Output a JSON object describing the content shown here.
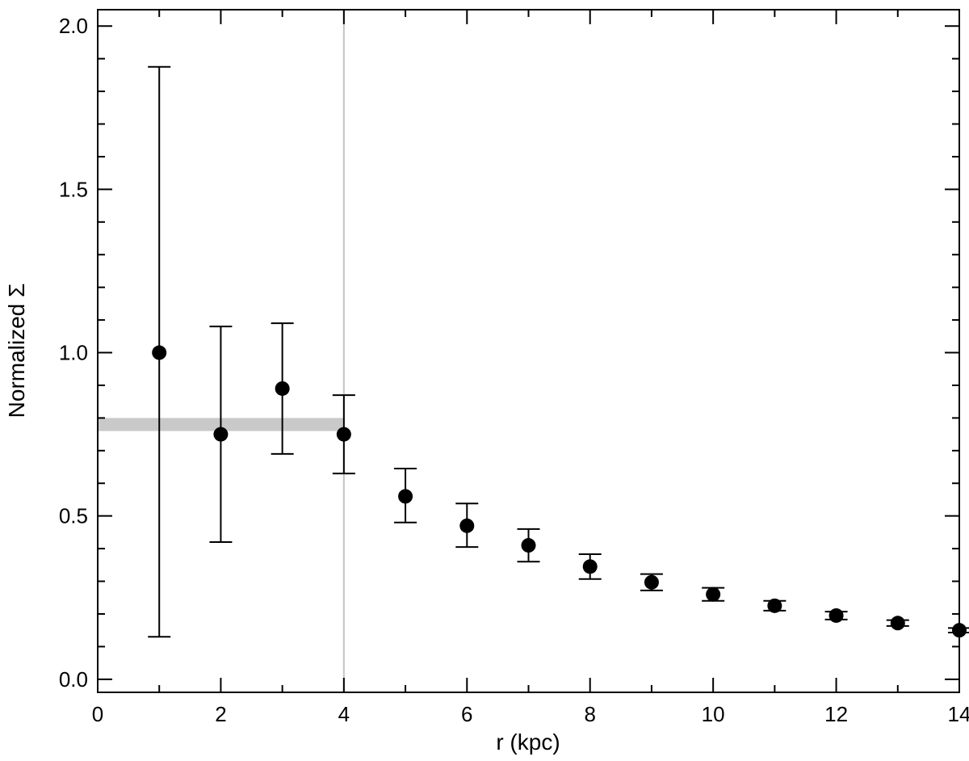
{
  "chart_data": {
    "type": "scatter",
    "title": "",
    "xlabel": "r (kpc)",
    "ylabel": "Normalized Σ",
    "xlim": [
      0,
      14
    ],
    "ylim": [
      -0.04,
      2.05
    ],
    "x_ticks": [
      0,
      2,
      4,
      6,
      8,
      10,
      12,
      14
    ],
    "y_ticks": [
      0.0,
      0.5,
      1.0,
      1.5,
      2.0
    ],
    "x_tick_labels": [
      "0",
      "2",
      "4",
      "6",
      "8",
      "10",
      "12",
      "14"
    ],
    "y_tick_labels": [
      "0.0",
      "0.5",
      "1.0",
      "1.5",
      "2.0"
    ],
    "x_minor_step": 1,
    "y_minor_step": 0.1,
    "grid": false,
    "reference_line": {
      "x": 4,
      "color": "#c4c4c4"
    },
    "shaded_band": {
      "x_range": [
        0,
        4
      ],
      "y_range": [
        0.76,
        0.8
      ],
      "color": "#c9c9c9"
    },
    "series": [
      {
        "marker": "filled-circle",
        "color": "#000000",
        "x": [
          1,
          2,
          3,
          4,
          5,
          6,
          7,
          8,
          9,
          10,
          11,
          12,
          13,
          14
        ],
        "y": [
          1.0,
          0.75,
          0.89,
          0.75,
          0.56,
          0.47,
          0.41,
          0.345,
          0.297,
          0.26,
          0.225,
          0.195,
          0.172,
          0.15
        ],
        "y_err_low": [
          0.13,
          0.42,
          0.69,
          0.63,
          0.48,
          0.405,
          0.36,
          0.307,
          0.272,
          0.24,
          0.21,
          0.183,
          0.163,
          0.143
        ],
        "y_err_high": [
          1.875,
          1.08,
          1.09,
          0.87,
          0.645,
          0.538,
          0.46,
          0.383,
          0.322,
          0.28,
          0.24,
          0.207,
          0.181,
          0.157
        ]
      }
    ]
  }
}
